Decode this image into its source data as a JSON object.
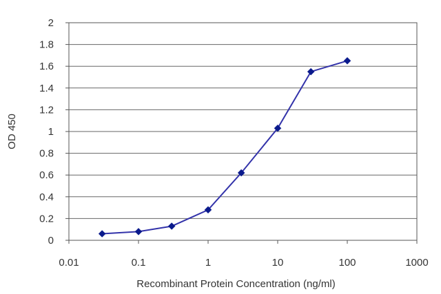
{
  "chart_data": {
    "type": "line",
    "title": "",
    "xlabel": "Recombinant Protein Concentration (ng/ml)",
    "ylabel": "OD 450",
    "x_scale": "log",
    "xlim": [
      0.01,
      1000
    ],
    "ylim": [
      0,
      2
    ],
    "x_ticks": [
      "0.01",
      "0.1",
      "1",
      "10",
      "100",
      "1000"
    ],
    "y_ticks": [
      "0",
      "0.2",
      "0.4",
      "0.6",
      "0.8",
      "1",
      "1.2",
      "1.4",
      "1.6",
      "1.8",
      "2"
    ],
    "grid": "horizontal",
    "legend": "none",
    "series": [
      {
        "x": [
          0.03,
          0.1,
          0.3,
          1,
          3,
          10,
          30,
          100
        ],
        "y": [
          0.06,
          0.08,
          0.13,
          0.28,
          0.62,
          1.03,
          1.55,
          1.65
        ],
        "color": "#3333aa",
        "marker_color": "#0a1a8c"
      }
    ]
  }
}
